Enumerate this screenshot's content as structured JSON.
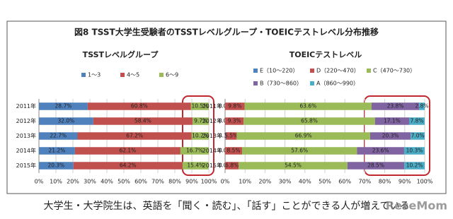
{
  "title": "図8 TSST大学生受験者のTSSTレベルグループ・TOEICテストレベル分布推移",
  "caption": "大学生・大学院生は、英語を「聞く・読む」、「話す」ことができる人が増えている",
  "watermark": "ReseMom",
  "chart_data": [
    {
      "type": "bar",
      "orientation": "horizontal",
      "stacked": true,
      "title": "TSSTレベルグループ",
      "categories": [
        "2011年",
        "2012年",
        "2013年",
        "2014年",
        "2015年"
      ],
      "series": [
        {
          "name": "1～3",
          "color": "#4f81bd",
          "values": [
            28.7,
            32.0,
            22.7,
            21.2,
            20.3
          ],
          "value_labels": [
            "28.7%",
            "32.0%",
            "22.7%",
            "21.2%",
            "20.3%"
          ]
        },
        {
          "name": "4～5",
          "color": "#c0504d",
          "values": [
            60.8,
            58.4,
            67.2,
            62.1,
            64.2
          ],
          "value_labels": [
            "60.8%",
            "58.4%",
            "67.2%",
            "62.1%",
            "64.2%"
          ]
        },
        {
          "name": "6～9",
          "color": "#9bbb59",
          "values": [
            10.5,
            9.7,
            10.2,
            16.7,
            15.4
          ],
          "value_labels": [
            "10.5%",
            "9.7%",
            "10.2%",
            "16.7%",
            "15.4%"
          ]
        }
      ],
      "xlim": [
        0,
        100
      ],
      "xticks": [
        {
          "value": 0,
          "label": "0%"
        },
        {
          "value": 10,
          "label": "10%"
        },
        {
          "value": 20,
          "label": "20%"
        },
        {
          "value": 30,
          "label": "30%"
        },
        {
          "value": 40,
          "label": "40%"
        },
        {
          "value": 50,
          "label": "50%"
        },
        {
          "value": 60,
          "label": "60%"
        },
        {
          "value": 70,
          "label": "70%"
        },
        {
          "value": 80,
          "label": "80%"
        },
        {
          "value": 90,
          "label": "90%"
        },
        {
          "value": 100,
          "label": "100%"
        }
      ],
      "grid": true
    },
    {
      "type": "bar",
      "orientation": "horizontal",
      "stacked": true,
      "title": "TOEICテストレベル",
      "categories": [
        "2011年",
        "2012年",
        "2013年",
        "2014年",
        "2015年"
      ],
      "series": [
        {
          "name": "E（10～220）",
          "color": "#4f81bd",
          "values": [
            0.0,
            0.0,
            0.3,
            0.0,
            0.0
          ],
          "value_labels": [
            "0.0%",
            "0.0%",
            "0.3%",
            "0.0%",
            "0.0%"
          ]
        },
        {
          "name": "D（220～470）",
          "color": "#c0504d",
          "values": [
            9.8,
            9.3,
            5.5,
            8.5,
            6.8
          ],
          "value_labels": [
            "9.8%",
            "9.3%",
            "5.5%",
            "8.5%",
            "6.8%"
          ]
        },
        {
          "name": "C（470～730）",
          "color": "#9bbb59",
          "values": [
            63.6,
            65.8,
            66.9,
            57.6,
            54.5
          ],
          "value_labels": [
            "63.6%",
            "65.8%",
            "66.9%",
            "57.6%",
            "54.5%"
          ]
        },
        {
          "name": "B（730～860）",
          "color": "#8064a2",
          "values": [
            23.8,
            17.1,
            20.3,
            23.6,
            28.5
          ],
          "value_labels": [
            "23.8%",
            "17.1%",
            "20.3%",
            "23.6%",
            "28.5%"
          ]
        },
        {
          "name": "A（860～990）",
          "color": "#4bacc6",
          "values": [
            2.8,
            7.8,
            7.0,
            10.3,
            10.2
          ],
          "value_labels": [
            "2.8%",
            "7.8%",
            "7.0%",
            "10.3%",
            "10.2%"
          ]
        }
      ],
      "xlim": [
        0,
        100
      ],
      "xticks": [
        {
          "value": 0,
          "label": "0%"
        },
        {
          "value": 10,
          "label": "10%"
        },
        {
          "value": 20,
          "label": "20%"
        },
        {
          "value": 30,
          "label": "30%"
        },
        {
          "value": 40,
          "label": "40%"
        },
        {
          "value": 50,
          "label": "50%"
        },
        {
          "value": 60,
          "label": "60%"
        },
        {
          "value": 70,
          "label": "70%"
        },
        {
          "value": 80,
          "label": "80%"
        },
        {
          "value": 90,
          "label": "90%"
        },
        {
          "value": 100,
          "label": "100%"
        }
      ],
      "grid": true
    }
  ]
}
